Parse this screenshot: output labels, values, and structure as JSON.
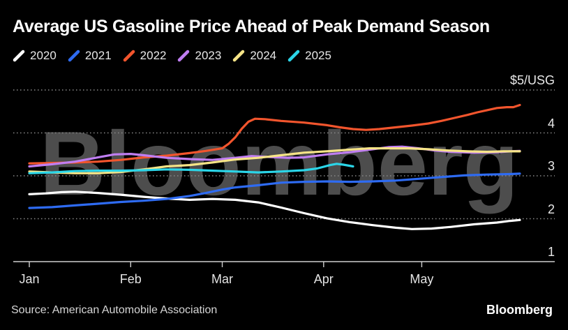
{
  "title": "Average US Gasoline Price Ahead of Peak Demand Season",
  "source": "Source: American Automobile Association",
  "brand": "Bloomberg",
  "watermark": "Bloomberg",
  "legend": {
    "items": [
      {
        "label": "2020",
        "color": "#ffffff"
      },
      {
        "label": "2021",
        "color": "#2e6bf2"
      },
      {
        "label": "2022",
        "color": "#f2552d"
      },
      {
        "label": "2023",
        "color": "#c07ef2"
      },
      {
        "label": "2024",
        "color": "#f6e487"
      },
      {
        "label": "2025",
        "color": "#2bd5e8"
      }
    ]
  },
  "chart_data": {
    "type": "line",
    "title": "Average US Gasoline Price Ahead of Peak Demand Season",
    "ylabel": "$/USG",
    "unit_label": "$5/USG",
    "ylim": [
      1,
      5
    ],
    "grid": "horizontal-dashed",
    "legend_position": "top-left",
    "yticks": [
      {
        "value": 5,
        "label": "$5/USG"
      },
      {
        "value": 4,
        "label": "4"
      },
      {
        "value": 3,
        "label": "3"
      },
      {
        "value": 2,
        "label": "2"
      },
      {
        "value": 1,
        "label": "1"
      }
    ],
    "x_axis": {
      "unit": "day-of-year",
      "domain": [
        0,
        150
      ],
      "months": [
        {
          "label": "Jan",
          "day": 0
        },
        {
          "label": "Feb",
          "day": 31
        },
        {
          "label": "Mar",
          "day": 59
        },
        {
          "label": "Apr",
          "day": 90
        },
        {
          "label": "May",
          "day": 120
        }
      ]
    },
    "series": [
      {
        "name": "2020",
        "color": "#ffffff",
        "points": [
          [
            0,
            2.57
          ],
          [
            5,
            2.59
          ],
          [
            10,
            2.62
          ],
          [
            14,
            2.63
          ],
          [
            21,
            2.6
          ],
          [
            28,
            2.56
          ],
          [
            35,
            2.51
          ],
          [
            42,
            2.47
          ],
          [
            49,
            2.44
          ],
          [
            56,
            2.46
          ],
          [
            63,
            2.44
          ],
          [
            70,
            2.38
          ],
          [
            77,
            2.26
          ],
          [
            84,
            2.13
          ],
          [
            91,
            2.01
          ],
          [
            98,
            1.92
          ],
          [
            105,
            1.85
          ],
          [
            112,
            1.79
          ],
          [
            117,
            1.76
          ],
          [
            123,
            1.77
          ],
          [
            129,
            1.81
          ],
          [
            136,
            1.87
          ],
          [
            143,
            1.91
          ],
          [
            147,
            1.95
          ],
          [
            150,
            1.97
          ]
        ]
      },
      {
        "name": "2021",
        "color": "#2e6bf2",
        "points": [
          [
            0,
            2.25
          ],
          [
            7,
            2.27
          ],
          [
            14,
            2.31
          ],
          [
            21,
            2.35
          ],
          [
            28,
            2.39
          ],
          [
            35,
            2.42
          ],
          [
            42,
            2.46
          ],
          [
            49,
            2.53
          ],
          [
            54,
            2.6
          ],
          [
            59,
            2.68
          ],
          [
            63,
            2.73
          ],
          [
            70,
            2.78
          ],
          [
            77,
            2.84
          ],
          [
            84,
            2.86
          ],
          [
            91,
            2.87
          ],
          [
            98,
            2.86
          ],
          [
            105,
            2.87
          ],
          [
            112,
            2.89
          ],
          [
            119,
            2.93
          ],
          [
            126,
            2.97
          ],
          [
            133,
            3.01
          ],
          [
            140,
            3.03
          ],
          [
            147,
            3.04
          ],
          [
            150,
            3.05
          ]
        ]
      },
      {
        "name": "2022",
        "color": "#f2552d",
        "points": [
          [
            0,
            3.29
          ],
          [
            7,
            3.3
          ],
          [
            14,
            3.31
          ],
          [
            21,
            3.33
          ],
          [
            28,
            3.37
          ],
          [
            35,
            3.43
          ],
          [
            42,
            3.47
          ],
          [
            49,
            3.53
          ],
          [
            54,
            3.58
          ],
          [
            59,
            3.64
          ],
          [
            61,
            3.75
          ],
          [
            63,
            3.9
          ],
          [
            65,
            4.1
          ],
          [
            67,
            4.26
          ],
          [
            69,
            4.33
          ],
          [
            72,
            4.32
          ],
          [
            77,
            4.28
          ],
          [
            84,
            4.24
          ],
          [
            91,
            4.18
          ],
          [
            95,
            4.13
          ],
          [
            99,
            4.09
          ],
          [
            103,
            4.07
          ],
          [
            107,
            4.09
          ],
          [
            112,
            4.13
          ],
          [
            117,
            4.17
          ],
          [
            122,
            4.22
          ],
          [
            126,
            4.28
          ],
          [
            130,
            4.35
          ],
          [
            134,
            4.42
          ],
          [
            137,
            4.48
          ],
          [
            140,
            4.53
          ],
          [
            143,
            4.58
          ],
          [
            146,
            4.6
          ],
          [
            148,
            4.6
          ],
          [
            150,
            4.65
          ]
        ]
      },
      {
        "name": "2023",
        "color": "#c07ef2",
        "points": [
          [
            0,
            3.22
          ],
          [
            7,
            3.27
          ],
          [
            14,
            3.33
          ],
          [
            21,
            3.43
          ],
          [
            26,
            3.5
          ],
          [
            31,
            3.51
          ],
          [
            35,
            3.48
          ],
          [
            42,
            3.42
          ],
          [
            49,
            3.39
          ],
          [
            56,
            3.37
          ],
          [
            63,
            3.42
          ],
          [
            68,
            3.46
          ],
          [
            73,
            3.44
          ],
          [
            79,
            3.42
          ],
          [
            84,
            3.43
          ],
          [
            91,
            3.5
          ],
          [
            98,
            3.55
          ],
          [
            105,
            3.62
          ],
          [
            110,
            3.67
          ],
          [
            114,
            3.68
          ],
          [
            119,
            3.64
          ],
          [
            124,
            3.59
          ],
          [
            129,
            3.56
          ],
          [
            136,
            3.54
          ],
          [
            143,
            3.55
          ],
          [
            147,
            3.57
          ],
          [
            150,
            3.58
          ]
        ]
      },
      {
        "name": "2024",
        "color": "#f6e487",
        "points": [
          [
            0,
            3.1
          ],
          [
            7,
            3.08
          ],
          [
            14,
            3.06
          ],
          [
            21,
            3.06
          ],
          [
            28,
            3.09
          ],
          [
            35,
            3.15
          ],
          [
            42,
            3.22
          ],
          [
            49,
            3.25
          ],
          [
            56,
            3.31
          ],
          [
            63,
            3.38
          ],
          [
            70,
            3.42
          ],
          [
            77,
            3.48
          ],
          [
            84,
            3.54
          ],
          [
            91,
            3.57
          ],
          [
            98,
            3.61
          ],
          [
            104,
            3.64
          ],
          [
            110,
            3.64
          ],
          [
            116,
            3.64
          ],
          [
            122,
            3.62
          ],
          [
            128,
            3.59
          ],
          [
            134,
            3.57
          ],
          [
            140,
            3.56
          ],
          [
            145,
            3.57
          ],
          [
            150,
            3.57
          ]
        ]
      },
      {
        "name": "2025",
        "color": "#2bd5e8",
        "points": [
          [
            0,
            3.06
          ],
          [
            7,
            3.08
          ],
          [
            14,
            3.11
          ],
          [
            21,
            3.12
          ],
          [
            28,
            3.12
          ],
          [
            35,
            3.13
          ],
          [
            42,
            3.15
          ],
          [
            49,
            3.14
          ],
          [
            56,
            3.12
          ],
          [
            63,
            3.1
          ],
          [
            70,
            3.08
          ],
          [
            77,
            3.1
          ],
          [
            84,
            3.13
          ],
          [
            88,
            3.17
          ],
          [
            92,
            3.25
          ],
          [
            94,
            3.28
          ],
          [
            96,
            3.26
          ],
          [
            99,
            3.22
          ]
        ]
      }
    ]
  }
}
